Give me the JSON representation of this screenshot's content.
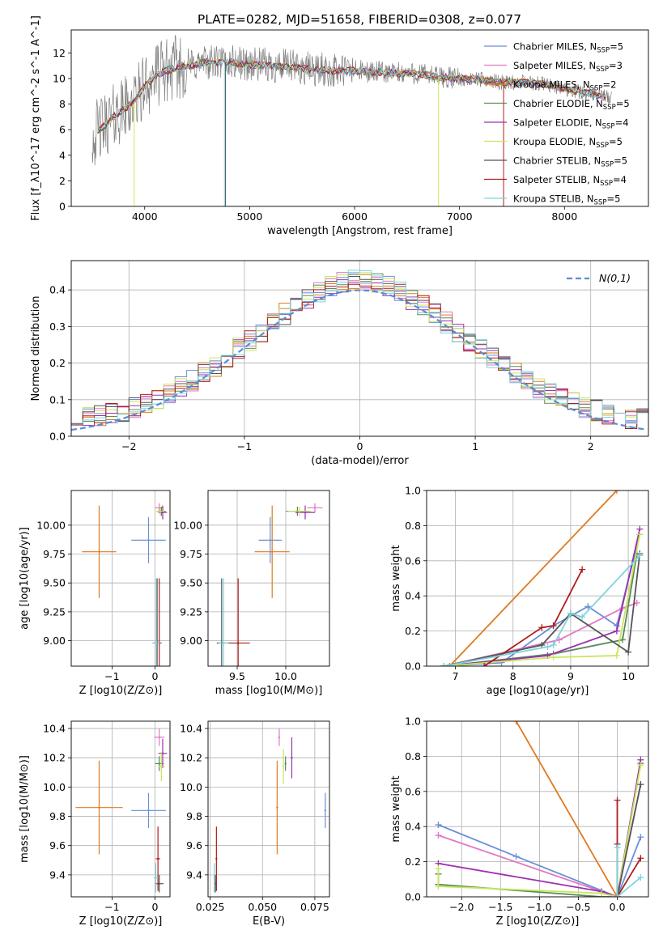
{
  "title": "PLATE=0282, MJD=51658, FIBERID=0308, z=0.077",
  "colors": {
    "Chabrier MILES": "#6a8fd8",
    "Salpeter MILES": "#e377c2",
    "Kroupa MILES": "#e07a1f",
    "Chabrier ELODIE": "#5a8a5a",
    "Salpeter ELODIE": "#9b30b0",
    "Kroupa ELODIE": "#c8e65a",
    "Chabrier STELIB": "#555555",
    "Salpeter STELIB": "#b01c1c",
    "Kroupa STELIB": "#7fd3dd"
  },
  "chart_data": [
    {
      "id": "spectrum",
      "type": "line",
      "xlabel": "wavelength [Angstrom, rest frame]",
      "ylabel": "Flux [f_λ10^-17 erg cm^-2 s^-1 A^-1]",
      "xlim": [
        3300,
        8800
      ],
      "ylim": [
        0,
        13.8
      ],
      "xticks": [
        4000,
        5000,
        6000,
        7000,
        8000
      ],
      "yticks": [
        0,
        2,
        4,
        6,
        8,
        10,
        12
      ],
      "legend": "right",
      "series": [
        {
          "name": "Chabrier MILES",
          "nssp": "5"
        },
        {
          "name": "Salpeter MILES",
          "nssp": "3"
        },
        {
          "name": "Kroupa MILES",
          "nssp": "2"
        },
        {
          "name": "Chabrier ELODIE",
          "nssp": "5"
        },
        {
          "name": "Salpeter ELODIE",
          "nssp": "4"
        },
        {
          "name": "Kroupa ELODIE",
          "nssp": "5"
        },
        {
          "name": "Chabrier STELIB",
          "nssp": "5"
        },
        {
          "name": "Salpeter STELIB",
          "nssp": "4"
        },
        {
          "name": "Kroupa STELIB",
          "nssp": "5"
        }
      ],
      "model_continuum": {
        "x": [
          3500,
          3600,
          3700,
          3800,
          3900,
          4000,
          4100,
          4200,
          4300,
          4400,
          4500,
          4600,
          4700,
          4800,
          5000,
          5200,
          5400,
          5600,
          5800,
          6000,
          6200,
          6400,
          6600,
          6800,
          7000,
          7200,
          7400,
          7600,
          7800,
          8000,
          8200,
          8400
        ],
        "y": [
          5.5,
          6.2,
          7.0,
          7.6,
          8.2,
          9.4,
          10.2,
          10.6,
          10.8,
          11.0,
          11.1,
          11.3,
          11.2,
          11.3,
          11.1,
          11.0,
          10.9,
          10.7,
          10.6,
          10.6,
          10.5,
          10.4,
          10.4,
          10.1,
          10.0,
          9.9,
          9.7,
          9.7,
          9.6,
          9.2,
          8.9,
          8.5
        ]
      }
    },
    {
      "id": "residuals",
      "type": "bar",
      "xlabel": "(data-model)/error",
      "ylabel": "Normed distribution",
      "xlim": [
        -2.5,
        2.5
      ],
      "ylim": [
        0,
        0.48
      ],
      "xticks": [
        -2,
        -1,
        0,
        1,
        2
      ],
      "yticks": [
        0.0,
        0.1,
        0.2,
        0.3,
        0.4
      ],
      "legend_label": "N(0,1)",
      "bin_width": 0.1
    },
    {
      "id": "age-vs-Z",
      "type": "scatter",
      "xlabel": "Z [log10(Z/Z⊙)]",
      "ylabel": "age  [log10(age/yr)]",
      "xlim": [
        -1.95,
        0.35
      ],
      "ylim": [
        8.78,
        10.3
      ],
      "xticks": [
        -1,
        0
      ],
      "yticks": [
        9.0,
        9.25,
        9.5,
        9.75,
        10.0
      ],
      "points": [
        {
          "name": "Kroupa MILES",
          "x": -1.3,
          "xerr": 0.4,
          "y": 9.77,
          "yerr": 0.4
        },
        {
          "name": "Chabrier MILES",
          "x": -0.15,
          "xerr": 0.4,
          "y": 9.87,
          "yerr": 0.2
        },
        {
          "name": "Salpeter MILES",
          "x": 0.1,
          "xerr": 0.1,
          "y": 10.15,
          "yerr": 0.04
        },
        {
          "name": "Chabrier ELODIE",
          "x": 0.15,
          "xerr": 0.1,
          "y": 10.12,
          "yerr": 0.04
        },
        {
          "name": "Salpeter ELODIE",
          "x": 0.18,
          "xerr": 0.1,
          "y": 10.11,
          "yerr": 0.06
        },
        {
          "name": "Kroupa ELODIE",
          "x": 0.12,
          "xerr": 0.1,
          "y": 10.12,
          "yerr": 0.04
        },
        {
          "name": "Chabrier STELIB",
          "x": 0.05,
          "xerr": 0.1,
          "y": 8.98,
          "yerr": 0.56
        },
        {
          "name": "Salpeter STELIB",
          "x": 0.1,
          "xerr": 0.05,
          "y": 8.98,
          "yerr": 0.56
        },
        {
          "name": "Kroupa STELIB",
          "x": 0.03,
          "xerr": 0.1,
          "y": 8.98,
          "yerr": 0.56
        }
      ]
    },
    {
      "id": "age-vs-mass",
      "type": "scatter",
      "xlabel": "mass [log10(M/M⊙)]",
      "ylabel": "",
      "xlim": [
        9.2,
        10.45
      ],
      "ylim": [
        8.78,
        10.3
      ],
      "xticks": [
        9.5,
        10.0
      ],
      "yticks": [
        9.0,
        9.25,
        9.5,
        9.75,
        10.0
      ],
      "points": [
        {
          "name": "Kroupa MILES",
          "x": 9.86,
          "xerr": 0.18,
          "y": 9.77,
          "yerr": 0.4
        },
        {
          "name": "Chabrier MILES",
          "x": 9.84,
          "xerr": 0.12,
          "y": 9.87,
          "yerr": 0.2
        },
        {
          "name": "Salpeter MILES",
          "x": 10.3,
          "xerr": 0.08,
          "y": 10.15,
          "yerr": 0.04
        },
        {
          "name": "Chabrier ELODIE",
          "x": 10.12,
          "xerr": 0.12,
          "y": 10.12,
          "yerr": 0.04
        },
        {
          "name": "Salpeter ELODIE",
          "x": 10.2,
          "xerr": 0.1,
          "y": 10.11,
          "yerr": 0.06
        },
        {
          "name": "Kroupa ELODIE",
          "x": 10.14,
          "xerr": 0.12,
          "y": 10.12,
          "yerr": 0.04
        },
        {
          "name": "Chabrier STELIB",
          "x": 9.34,
          "xerr": 0.05,
          "y": 8.98,
          "yerr": 0.56
        },
        {
          "name": "Salpeter STELIB",
          "x": 9.51,
          "xerr": 0.12,
          "y": 8.98,
          "yerr": 0.56
        },
        {
          "name": "Kroupa STELIB",
          "x": 9.36,
          "xerr": 0.05,
          "y": 8.98,
          "yerr": 0.56
        }
      ]
    },
    {
      "id": "weight-vs-age",
      "type": "line",
      "xlabel": "age  [log10(age/yr)]",
      "ylabel": "mass weight",
      "xlim": [
        6.5,
        10.35
      ],
      "ylim": [
        0,
        1.0
      ],
      "xticks": [
        7,
        8,
        9,
        10
      ],
      "yticks": [
        0.0,
        0.2,
        0.4,
        0.6,
        0.8,
        1.0
      ],
      "series": [
        {
          "name": "Chabrier MILES",
          "x": [
            6.8,
            7.8,
            8.7,
            9.3,
            9.8,
            10.2
          ],
          "y": [
            0.0,
            0.02,
            0.23,
            0.34,
            0.23,
            0.75
          ]
        },
        {
          "name": "Salpeter MILES",
          "x": [
            6.8,
            8.8,
            9.9,
            10.15
          ],
          "y": [
            0.0,
            0.15,
            0.33,
            0.36
          ]
        },
        {
          "name": "Kroupa MILES",
          "x": [
            6.9,
            9.8
          ],
          "y": [
            0.0,
            1.0
          ]
        },
        {
          "name": "Chabrier ELODIE",
          "x": [
            6.8,
            8.7,
            9.9,
            10.15
          ],
          "y": [
            0.0,
            0.07,
            0.15,
            0.64
          ]
        },
        {
          "name": "Salpeter ELODIE",
          "x": [
            6.8,
            8.6,
            9.8,
            10.2
          ],
          "y": [
            0.0,
            0.06,
            0.2,
            0.78
          ]
        },
        {
          "name": "Kroupa ELODIE",
          "x": [
            6.8,
            8.7,
            9.8,
            10.2
          ],
          "y": [
            0.0,
            0.05,
            0.06,
            0.75
          ]
        },
        {
          "name": "Chabrier STELIB",
          "x": [
            6.8,
            8.5,
            9.0,
            10.0,
            10.2
          ],
          "y": [
            0.0,
            0.12,
            0.3,
            0.08,
            0.64
          ]
        },
        {
          "name": "Salpeter STELIB",
          "x": [
            7.5,
            8.5,
            8.7,
            9.2
          ],
          "y": [
            0.0,
            0.22,
            0.23,
            0.55
          ]
        },
        {
          "name": "Kroupa STELIB",
          "x": [
            6.8,
            8.6,
            8.7,
            9.0,
            9.2,
            10.2
          ],
          "y": [
            0.0,
            0.11,
            0.12,
            0.3,
            0.28,
            0.63
          ]
        }
      ]
    },
    {
      "id": "mass-vs-Z",
      "type": "scatter",
      "xlabel": "Z [log10(Z/Z⊙)]",
      "ylabel": "mass [log10(M/M⊙)]",
      "xlim": [
        -1.95,
        0.35
      ],
      "ylim": [
        9.25,
        10.45
      ],
      "xticks": [
        -1,
        0
      ],
      "yticks": [
        9.4,
        9.6,
        9.8,
        10.0,
        10.2,
        10.4
      ],
      "points": [
        {
          "name": "Kroupa MILES",
          "x": -1.3,
          "xerr": 0.55,
          "y": 9.86,
          "yerr": 0.32
        },
        {
          "name": "Chabrier MILES",
          "x": -0.15,
          "xerr": 0.4,
          "y": 9.84,
          "yerr": 0.12
        },
        {
          "name": "Salpeter MILES",
          "x": 0.1,
          "xerr": 0.12,
          "y": 10.34,
          "yerr": 0.06
        },
        {
          "name": "Chabrier ELODIE",
          "x": 0.1,
          "xerr": 0.1,
          "y": 10.16,
          "yerr": 0.05
        },
        {
          "name": "Salpeter ELODIE",
          "x": 0.18,
          "xerr": 0.1,
          "y": 10.23,
          "yerr": 0.1
        },
        {
          "name": "Kroupa ELODIE",
          "x": 0.15,
          "xerr": 0.08,
          "y": 10.14,
          "yerr": 0.1
        },
        {
          "name": "Chabrier STELIB",
          "x": 0.1,
          "xerr": 0.1,
          "y": 9.34,
          "yerr": 0.06
        },
        {
          "name": "Salpeter STELIB",
          "x": 0.07,
          "xerr": 0.05,
          "y": 9.51,
          "yerr": 0.22
        },
        {
          "name": "Kroupa STELIB",
          "x": 0.02,
          "xerr": 0.05,
          "y": 9.38,
          "yerr": 0.1
        }
      ]
    },
    {
      "id": "mass-vs-EBV",
      "type": "scatter",
      "xlabel": "E(B-V)",
      "ylabel": "",
      "xlim": [
        0.024,
        0.082
      ],
      "ylim": [
        9.25,
        10.45
      ],
      "xticks": [
        0.025,
        0.05,
        0.075
      ],
      "yticks": [
        9.4,
        9.6,
        9.8,
        10.0,
        10.2,
        10.4
      ],
      "points": [
        {
          "name": "Kroupa MILES",
          "x": 0.057,
          "y": 9.86,
          "yerr": 0.32
        },
        {
          "name": "Chabrier MILES",
          "x": 0.08,
          "y": 9.84,
          "yerr": 0.12
        },
        {
          "name": "Salpeter MILES",
          "x": 0.058,
          "y": 10.34,
          "yerr": 0.06
        },
        {
          "name": "Chabrier ELODIE",
          "x": 0.061,
          "y": 10.16,
          "yerr": 0.05
        },
        {
          "name": "Salpeter ELODIE",
          "x": 0.064,
          "y": 10.2,
          "yerr": 0.14
        },
        {
          "name": "Kroupa ELODIE",
          "x": 0.06,
          "y": 10.14,
          "yerr": 0.12
        },
        {
          "name": "Chabrier STELIB",
          "x": 0.0275,
          "y": 9.34,
          "yerr": 0.06
        },
        {
          "name": "Salpeter STELIB",
          "x": 0.028,
          "y": 9.51,
          "yerr": 0.22
        },
        {
          "name": "Kroupa STELIB",
          "x": 0.027,
          "y": 9.38,
          "yerr": 0.1
        }
      ]
    },
    {
      "id": "weight-vs-Z",
      "type": "line",
      "xlabel": "Z [log10(Z/Z⊙)]",
      "ylabel": "mass weight",
      "xlim": [
        -2.45,
        0.4
      ],
      "ylim": [
        0,
        1.0
      ],
      "xticks": [
        -2.0,
        -1.5,
        -1.0,
        -0.5,
        0.0
      ],
      "yticks": [
        0.0,
        0.2,
        0.4,
        0.6,
        0.8,
        1.0
      ],
      "series": [
        {
          "name": "Chabrier MILES",
          "x": [
            -2.3,
            -1.3,
            0.0,
            0.3
          ],
          "y": [
            0.41,
            0.23,
            0.0,
            0.34
          ]
        },
        {
          "name": "Salpeter MILES",
          "x": [
            -2.3,
            -0.2,
            0.0,
            0.3
          ],
          "y": [
            0.35,
            0.03,
            0.0,
            0.64
          ]
        },
        {
          "name": "Kroupa MILES",
          "x": [
            -1.3,
            0.0
          ],
          "y": [
            1.0,
            0.0
          ]
        },
        {
          "name": "Chabrier ELODIE",
          "x": [
            -2.3,
            -2.3,
            -0.2,
            0.0,
            0.3
          ],
          "y": [
            0.13,
            0.07,
            0.0,
            0.0,
            0.76
          ]
        },
        {
          "name": "Salpeter ELODIE",
          "x": [
            -2.3,
            -0.2,
            0.0,
            0.3
          ],
          "y": [
            0.19,
            0.03,
            0.0,
            0.78
          ]
        },
        {
          "name": "Kroupa ELODIE",
          "x": [
            -2.3,
            -2.3,
            -0.2,
            0.0,
            0.3
          ],
          "y": [
            0.16,
            0.06,
            0.02,
            0.0,
            0.75
          ]
        },
        {
          "name": "Chabrier STELIB",
          "x": [
            0.0,
            0.0,
            0.3
          ],
          "y": [
            0.3,
            0.0,
            0.64
          ]
        },
        {
          "name": "Salpeter STELIB",
          "x": [
            0.0,
            0.0,
            0.3
          ],
          "y": [
            0.55,
            0.0,
            0.22
          ]
        },
        {
          "name": "Kroupa STELIB",
          "x": [
            0.0,
            0.0,
            0.3
          ],
          "y": [
            0.28,
            0.0,
            0.11
          ]
        }
      ]
    }
  ]
}
